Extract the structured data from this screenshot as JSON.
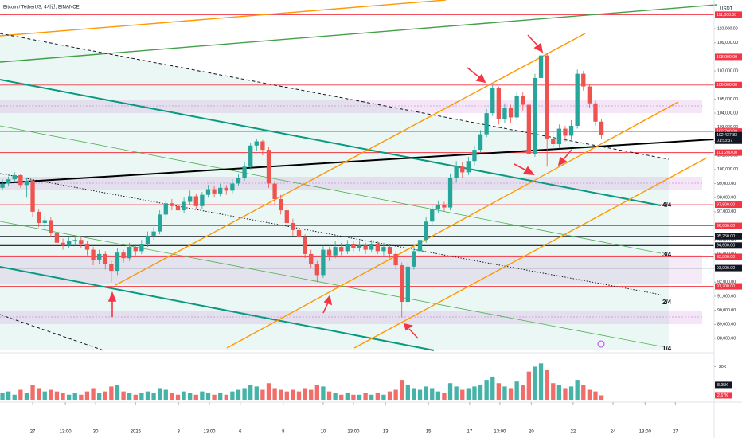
{
  "chart_data": {
    "type": "candlestick",
    "title": "Bitcoin / TetherUS, 4시간, BINANCE",
    "y_label": "USDT",
    "up_color": "#26a69a",
    "down_color": "#ef5350",
    "ylim": [
      87150,
      112040
    ],
    "yticks": [
      {
        "value": 88000,
        "label": "88,000.00"
      },
      {
        "value": 89000,
        "label": "89,000.00"
      },
      {
        "value": 90000,
        "label": "90,000.00"
      },
      {
        "value": 91000,
        "label": "91,000.00"
      },
      {
        "value": 92000,
        "label": "92,000.00"
      },
      {
        "value": 93000,
        "label": "93,000.00"
      },
      {
        "value": 94000,
        "label": "94,000.00"
      },
      {
        "value": 95000,
        "label": "95,000.00"
      },
      {
        "value": 96000,
        "label": "96,000.00"
      },
      {
        "value": 97000,
        "label": "97,000.00"
      },
      {
        "value": 98000,
        "label": "98,000.00"
      },
      {
        "value": 99000,
        "label": "99,000.00"
      },
      {
        "value": 100000,
        "label": "100,000.00"
      },
      {
        "value": 101000,
        "label": "101,000.00"
      },
      {
        "value": 102000,
        "label": "102,000.00"
      },
      {
        "value": 103000,
        "label": "103,000.00"
      },
      {
        "value": 104000,
        "label": "104,000.00"
      },
      {
        "value": 105000,
        "label": "105,000.00"
      },
      {
        "value": 106000,
        "label": "106,000.00"
      },
      {
        "value": 107000,
        "label": "107,000.00"
      },
      {
        "value": 108000,
        "label": "108,000.00"
      },
      {
        "value": 109000,
        "label": "109,000.00"
      },
      {
        "value": 110000,
        "label": "110,000.00"
      }
    ],
    "xlim": [
      -0.4,
      118
    ],
    "xticks": [
      {
        "value": 5,
        "label": "27"
      },
      {
        "value": 10.4,
        "label": "13:00"
      },
      {
        "value": 15.4,
        "label": "30"
      },
      {
        "value": 22,
        "label": "2025"
      },
      {
        "value": 29.1,
        "label": "3"
      },
      {
        "value": 34.2,
        "label": "13:00"
      },
      {
        "value": 39.3,
        "label": "6"
      },
      {
        "value": 46.4,
        "label": "8"
      },
      {
        "value": 53,
        "label": "10"
      },
      {
        "value": 58,
        "label": "13:00"
      },
      {
        "value": 63.3,
        "label": "13"
      },
      {
        "value": 70.4,
        "label": "15"
      },
      {
        "value": 77.2,
        "label": "17"
      },
      {
        "value": 82.2,
        "label": "13:00"
      },
      {
        "value": 87.4,
        "label": "20"
      },
      {
        "value": 94.3,
        "label": "22"
      },
      {
        "value": 100.9,
        "label": "24"
      },
      {
        "value": 106.2,
        "label": "13:00"
      },
      {
        "value": 111.2,
        "label": "27"
      }
    ],
    "open": [
      98700,
      99000,
      99300,
      99600,
      98900,
      99200,
      97000,
      96200,
      96400,
      95500,
      94800,
      94600,
      94900,
      95000,
      94700,
      94300,
      93600,
      94000,
      93300,
      92800,
      94100,
      93700,
      94500,
      94200,
      94700,
      95300,
      95600,
      96800,
      97600,
      97400,
      97100,
      97700,
      98100,
      97400,
      98200,
      98600,
      98300,
      98700,
      98500,
      99000,
      99400,
      100200,
      101700,
      102000,
      101400,
      99000,
      97900,
      97100,
      96200,
      95700,
      95200,
      94000,
      93300,
      92500,
      94300,
      93900,
      94500,
      94200,
      94700,
      94400,
      94600,
      94300,
      94700,
      94200,
      94500,
      94000,
      93200,
      90600,
      93100,
      94200,
      95000,
      96300,
      97200,
      97500,
      97300,
      99400,
      100200,
      99800,
      100600,
      101400,
      102500,
      104000,
      105800,
      103600,
      104400,
      103700,
      105200,
      104600,
      101100,
      106500,
      108100,
      102200,
      101800,
      102900,
      102400,
      103100,
      106800,
      105900,
      104700,
      103400
    ],
    "high": [
      99300,
      99500,
      99800,
      99700,
      99400,
      99300,
      97200,
      96700,
      96600,
      95700,
      95100,
      95200,
      95300,
      95200,
      94900,
      94500,
      94300,
      94200,
      93500,
      94400,
      94300,
      94800,
      94700,
      95000,
      95600,
      95900,
      97100,
      97900,
      97900,
      97700,
      98000,
      98500,
      98300,
      98400,
      98900,
      98800,
      99000,
      98900,
      99300,
      99700,
      100500,
      101900,
      102200,
      102100,
      101600,
      99200,
      98200,
      97400,
      96500,
      95900,
      95400,
      94300,
      93500,
      94600,
      94500,
      94900,
      94800,
      95000,
      94900,
      94900,
      94800,
      95000,
      94900,
      94800,
      94700,
      94200,
      93400,
      93400,
      94500,
      95300,
      96600,
      97500,
      97800,
      97700,
      99700,
      100600,
      100500,
      100900,
      101700,
      102800,
      104300,
      106000,
      105900,
      104700,
      104600,
      105500,
      105500,
      104800,
      106800,
      109300,
      108300,
      102700,
      103200,
      103100,
      103500,
      107100,
      107000,
      106100,
      104900,
      103600
    ],
    "low": [
      98500,
      98800,
      99100,
      98700,
      98000,
      96600,
      95900,
      95800,
      95200,
      94400,
      94300,
      94400,
      94600,
      94400,
      93900,
      93200,
      93300,
      92900,
      92000,
      92500,
      93400,
      93500,
      93900,
      94000,
      94500,
      95000,
      95400,
      96500,
      97100,
      96800,
      96900,
      97500,
      97200,
      97200,
      98000,
      98000,
      98100,
      98200,
      98300,
      98800,
      99200,
      100000,
      101300,
      101000,
      98700,
      97500,
      96800,
      95900,
      95300,
      94900,
      93700,
      93000,
      92000,
      92300,
      93500,
      93700,
      93900,
      94000,
      94100,
      94200,
      94000,
      94100,
      94000,
      93900,
      93700,
      92900,
      89500,
      90300,
      92900,
      94000,
      94800,
      96100,
      96900,
      97000,
      97100,
      99100,
      99400,
      99600,
      100300,
      101200,
      102300,
      103800,
      103200,
      103300,
      103300,
      103500,
      104200,
      100800,
      100900,
      106200,
      100200,
      101400,
      101500,
      102000,
      102100,
      102900,
      105600,
      104400,
      103100,
      102200
    ],
    "close": [
      99000,
      99300,
      99600,
      98900,
      99200,
      97000,
      96200,
      96400,
      95500,
      94800,
      94600,
      94900,
      95000,
      94700,
      94300,
      93600,
      94000,
      93300,
      92800,
      94100,
      93700,
      94500,
      94200,
      94700,
      95300,
      95600,
      96800,
      97600,
      97400,
      97100,
      97700,
      98100,
      97400,
      98200,
      98600,
      98300,
      98700,
      98500,
      99000,
      99400,
      100200,
      101700,
      102000,
      101400,
      99000,
      97900,
      97100,
      96200,
      95700,
      95200,
      94000,
      93300,
      92500,
      94300,
      93900,
      94500,
      94200,
      94700,
      94400,
      94600,
      94300,
      94700,
      94200,
      94500,
      94000,
      93200,
      90600,
      93100,
      94200,
      95000,
      96300,
      97200,
      97500,
      97300,
      99400,
      100200,
      99800,
      100600,
      101400,
      102500,
      104000,
      105800,
      103600,
      104400,
      103700,
      105200,
      104600,
      101100,
      106500,
      108100,
      102200,
      101800,
      102900,
      102400,
      103100,
      106800,
      105900,
      104700,
      103400,
      102437.83
    ],
    "volume": [
      4000,
      5000,
      3000,
      6000,
      4000,
      9000,
      7000,
      5000,
      6000,
      5000,
      4000,
      3000,
      4000,
      3000,
      5000,
      7000,
      4000,
      5000,
      8000,
      9000,
      5000,
      4000,
      3000,
      4000,
      5000,
      4000,
      7000,
      6000,
      4000,
      3000,
      5000,
      4000,
      3000,
      5000,
      4000,
      3000,
      4000,
      3000,
      5000,
      6000,
      7000,
      9000,
      8000,
      6000,
      10000,
      7000,
      6000,
      5000,
      6000,
      5000,
      7000,
      6000,
      9000,
      8000,
      5000,
      4000,
      3000,
      4000,
      3000,
      3000,
      4000,
      3000,
      4000,
      3000,
      5000,
      6000,
      12000,
      9000,
      7000,
      6000,
      8000,
      7000,
      5000,
      4000,
      10000,
      8000,
      6000,
      7000,
      8000,
      9000,
      12000,
      14000,
      10000,
      8000,
      7000,
      11000,
      9000,
      17000,
      20000,
      22000,
      18000,
      10000,
      9000,
      7000,
      8000,
      12000,
      9000,
      6000,
      5000,
      2670
    ],
    "volume_lim": [
      0,
      26000
    ],
    "volume_ticks": [
      {
        "value": 20000,
        "label": "20K"
      }
    ],
    "volume_ma": {
      "value": 8950,
      "label": "8.95K"
    },
    "last_volume": {
      "value": 2670,
      "label": "2.67K"
    },
    "levels": [
      {
        "value": 111000,
        "label": "111,000.00",
        "color": "#f23645"
      },
      {
        "value": 108000,
        "label": "108,000.00",
        "color": "#f23645"
      },
      {
        "value": 106000,
        "label": "106,000.00",
        "color": "#f23645"
      },
      {
        "value": 102700,
        "label": "102,700.00",
        "color": "#f23645"
      },
      {
        "value": 101200,
        "label": "101,200.00",
        "color": "#f23645"
      },
      {
        "value": 97500,
        "label": "97,500.00",
        "color": "#f23645"
      },
      {
        "value": 96000,
        "label": "96,000.00",
        "color": "#f23645"
      },
      {
        "value": 95250,
        "label": "95,250.00",
        "color": "#131722"
      },
      {
        "value": 94600,
        "label": "94,600.00",
        "color": "#131722"
      },
      {
        "value": 93800,
        "label": "93,800.00",
        "color": "#f23645"
      },
      {
        "value": 93000,
        "label": "93,000.00",
        "color": "#131722"
      },
      {
        "value": 91700,
        "label": "91,700.00",
        "color": "#f23645"
      }
    ],
    "last_price": {
      "value": 102437.83,
      "label": "102,437.83",
      "countdown": "01:53:37"
    },
    "channel_labels": [
      "4/4",
      "3/4",
      "2/4",
      "1/4"
    ]
  }
}
